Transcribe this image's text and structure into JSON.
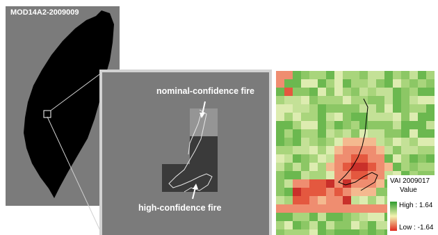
{
  "left_panel": {
    "title": "MOD14A2-2009009"
  },
  "middle_panel": {
    "nominal_label": "nominal-confidence fire",
    "high_label": "high-confidence fire"
  },
  "right_panel": {
    "legend_title": "VAI 2009017",
    "legend_subtitle": "Value",
    "legend_high": "High : 1.64",
    "legend_low": "Low : -1.64",
    "legend_high_value": 1.64,
    "legend_low_value": -1.64
  },
  "colors": {
    "panel_grey": "#7b7b7b",
    "fire_nominal": "#959595",
    "fire_high": "#3a3a3a",
    "vai_high": "#2e9c2e",
    "vai_low": "#e02a1e"
  }
}
